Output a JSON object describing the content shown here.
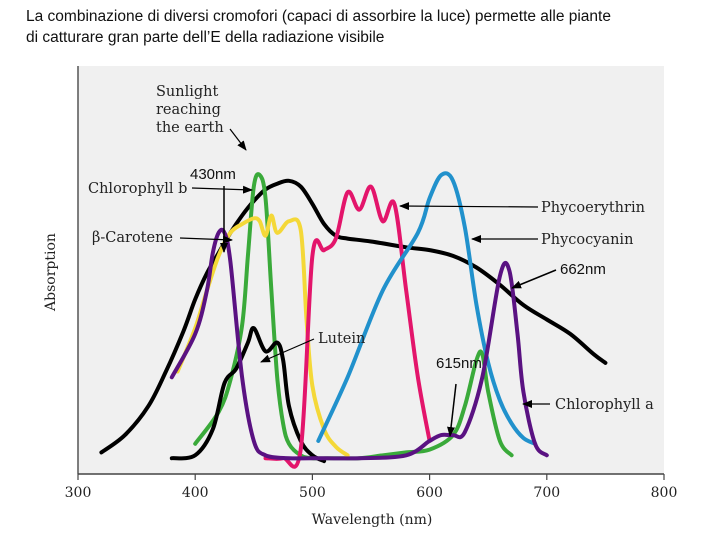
{
  "caption": {
    "line1": "La combinazione di diversi cromofori (capaci di assorbire la luce) permette alle piante",
    "line2": "di catturare gran parte dell’E della radiazione visibile"
  },
  "chart_data": {
    "type": "line",
    "title": "",
    "xlabel": "Wavelength (nm)",
    "ylabel": "Absorption",
    "xlim": [
      300,
      800
    ],
    "ylim": [
      0,
      1
    ],
    "xticks": [
      300,
      400,
      500,
      600,
      700,
      800
    ],
    "grid": false,
    "series": [
      {
        "name": "Sunlight reaching the earth",
        "color": "#000000",
        "x": [
          320,
          340,
          360,
          375,
          390,
          400,
          410,
          420,
          430,
          440,
          450,
          460,
          470,
          480,
          490,
          500,
          510,
          520,
          530,
          550,
          580,
          600,
          620,
          640,
          660,
          680,
          700,
          720,
          740,
          750
        ],
        "y": [
          0.04,
          0.1,
          0.2,
          0.32,
          0.46,
          0.57,
          0.66,
          0.73,
          0.8,
          0.86,
          0.91,
          0.95,
          0.97,
          0.98,
          0.96,
          0.9,
          0.83,
          0.79,
          0.78,
          0.77,
          0.75,
          0.74,
          0.72,
          0.68,
          0.62,
          0.55,
          0.5,
          0.45,
          0.38,
          0.35
        ]
      },
      {
        "name": "Chlorophyll b",
        "color": "#3aaa3a",
        "x": [
          400,
          420,
          430,
          440,
          445,
          450,
          455,
          460,
          465,
          470,
          475,
          480,
          490,
          500,
          520,
          540,
          560,
          580,
          600,
          620,
          630,
          640,
          645,
          650,
          660,
          670
        ],
        "y": [
          0.07,
          0.18,
          0.29,
          0.48,
          0.72,
          0.96,
          1.0,
          0.92,
          0.6,
          0.3,
          0.14,
          0.07,
          0.03,
          0.02,
          0.02,
          0.02,
          0.03,
          0.04,
          0.05,
          0.1,
          0.2,
          0.36,
          0.38,
          0.25,
          0.08,
          0.03
        ]
      },
      {
        "name": "β-Carotene",
        "color": "#f4d838",
        "x": [
          385,
          400,
          410,
          420,
          430,
          440,
          450,
          455,
          460,
          465,
          470,
          480,
          490,
          495,
          500,
          510,
          520,
          530
        ],
        "y": [
          0.32,
          0.47,
          0.6,
          0.72,
          0.8,
          0.83,
          0.85,
          0.84,
          0.79,
          0.86,
          0.8,
          0.84,
          0.81,
          0.5,
          0.27,
          0.12,
          0.06,
          0.03
        ]
      },
      {
        "name": "Lutein",
        "color": "#000000",
        "x": [
          380,
          400,
          415,
          425,
          435,
          445,
          450,
          460,
          470,
          475,
          480,
          490,
          500,
          510
        ],
        "y": [
          0.02,
          0.03,
          0.12,
          0.28,
          0.33,
          0.42,
          0.47,
          0.39,
          0.42,
          0.36,
          0.2,
          0.08,
          0.03,
          0.01
        ]
      },
      {
        "name": "Phycoerythrin",
        "color": "#e3156b",
        "x": [
          460,
          475,
          490,
          500,
          510,
          520,
          530,
          540,
          550,
          560,
          570,
          580,
          590,
          600
        ],
        "y": [
          0.02,
          0.02,
          0.05,
          0.72,
          0.74,
          0.78,
          0.94,
          0.88,
          0.96,
          0.84,
          0.9,
          0.6,
          0.3,
          0.08
        ]
      },
      {
        "name": "Phycocyanin",
        "color": "#2191cc",
        "x": [
          505,
          530,
          560,
          590,
          600,
          610,
          620,
          630,
          640,
          650,
          660,
          670,
          680,
          690
        ],
        "y": [
          0.08,
          0.3,
          0.6,
          0.8,
          0.92,
          1.0,
          0.98,
          0.82,
          0.55,
          0.35,
          0.22,
          0.14,
          0.09,
          0.07
        ]
      },
      {
        "name": "Chlorophyll a",
        "color": "#5a1282",
        "x": [
          380,
          400,
          410,
          415,
          420,
          425,
          430,
          440,
          450,
          460,
          480,
          500,
          540,
          580,
          600,
          610,
          620,
          630,
          645,
          660,
          668,
          675,
          680,
          690,
          700
        ],
        "y": [
          0.3,
          0.45,
          0.6,
          0.73,
          0.8,
          0.8,
          0.7,
          0.3,
          0.08,
          0.03,
          0.02,
          0.02,
          0.02,
          0.03,
          0.08,
          0.1,
          0.1,
          0.11,
          0.3,
          0.65,
          0.67,
          0.45,
          0.25,
          0.07,
          0.03
        ]
      }
    ],
    "annotations": [
      {
        "text": "Sunlight reaching the earth",
        "lines": [
          "Sunlight",
          "reaching",
          "the earth"
        ]
      },
      {
        "text": "Chlorophyll b"
      },
      {
        "text": "β-Carotene"
      },
      {
        "text": "Phycoerythrin"
      },
      {
        "text": "Phycocyanin"
      },
      {
        "text": "Lutein"
      },
      {
        "text": "Chlorophyll a"
      },
      {
        "text": "430nm"
      },
      {
        "text": "662nm"
      },
      {
        "text": "615nm"
      }
    ]
  }
}
